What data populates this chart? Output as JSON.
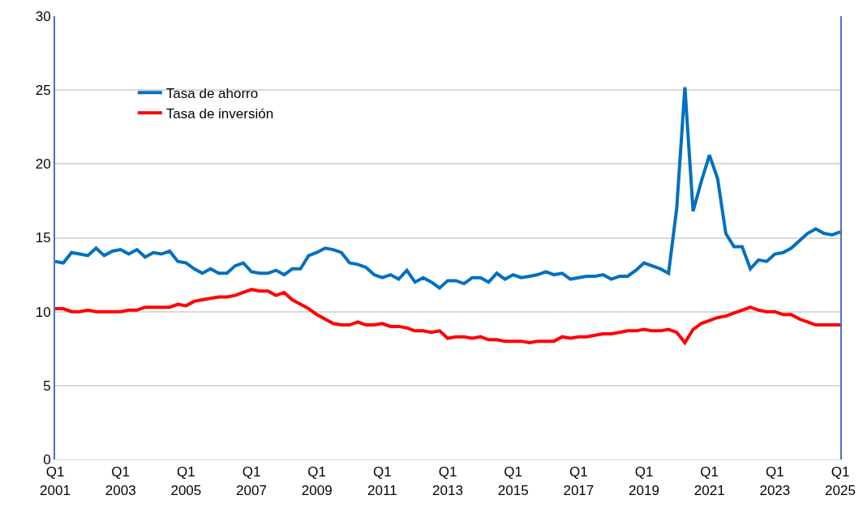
{
  "chart_data": {
    "type": "line",
    "categories": [
      "Q1\n2001",
      null,
      null,
      null,
      null,
      null,
      null,
      null,
      "Q1\n2003",
      null,
      null,
      null,
      null,
      null,
      null,
      null,
      "Q1\n2005",
      null,
      null,
      null,
      null,
      null,
      null,
      null,
      "Q1\n2007",
      null,
      null,
      null,
      null,
      null,
      null,
      null,
      "Q1\n2009",
      null,
      null,
      null,
      null,
      null,
      null,
      null,
      "Q1\n2011",
      null,
      null,
      null,
      null,
      null,
      null,
      null,
      "Q1\n2013",
      null,
      null,
      null,
      null,
      null,
      null,
      null,
      "Q1\n2015",
      null,
      null,
      null,
      null,
      null,
      null,
      null,
      "Q1\n2017",
      null,
      null,
      null,
      null,
      null,
      null,
      null,
      "Q1\n2019",
      null,
      null,
      null,
      null,
      null,
      null,
      null,
      "Q1\n2021",
      null,
      null,
      null,
      null,
      null,
      null,
      null,
      "Q1\n2023",
      null,
      null,
      null,
      null,
      null,
      null,
      null,
      "Q1\n2025"
    ],
    "series": [
      {
        "name": "Tasa de ahorro",
        "color": "#0070c0",
        "values": [
          13.4,
          13.3,
          14.0,
          13.9,
          13.8,
          14.3,
          13.8,
          14.1,
          14.2,
          13.9,
          14.2,
          13.7,
          14.0,
          13.9,
          14.1,
          13.4,
          13.3,
          12.9,
          12.6,
          12.9,
          12.6,
          12.6,
          13.1,
          13.3,
          12.7,
          12.6,
          12.6,
          12.8,
          12.5,
          12.9,
          12.9,
          13.8,
          14.0,
          14.3,
          14.2,
          14.0,
          13.3,
          13.2,
          13.0,
          12.5,
          12.3,
          12.5,
          12.2,
          12.8,
          12.0,
          12.3,
          12.0,
          11.6,
          12.1,
          12.1,
          11.9,
          12.3,
          12.3,
          12.0,
          12.6,
          12.2,
          12.5,
          12.3,
          12.4,
          12.5,
          12.7,
          12.5,
          12.6,
          12.2,
          12.3,
          12.4,
          12.4,
          12.5,
          12.2,
          12.4,
          12.4,
          12.8,
          13.3,
          13.1,
          12.9,
          12.6,
          17.0,
          25.2,
          16.8,
          18.8,
          20.6,
          19.0,
          15.3,
          14.4,
          14.4,
          12.9,
          13.5,
          13.4,
          13.9,
          14.0,
          14.3,
          14.8,
          15.3,
          15.6,
          15.3,
          15.2,
          15.4
        ]
      },
      {
        "name": "Tasa de inversión",
        "color": "#ff0000",
        "values": [
          10.2,
          10.2,
          10.0,
          10.0,
          10.1,
          10.0,
          10.0,
          10.0,
          10.0,
          10.1,
          10.1,
          10.3,
          10.3,
          10.3,
          10.3,
          10.5,
          10.4,
          10.7,
          10.8,
          10.9,
          11.0,
          11.0,
          11.1,
          11.3,
          11.5,
          11.4,
          11.4,
          11.1,
          11.3,
          10.8,
          10.5,
          10.2,
          9.8,
          9.5,
          9.2,
          9.1,
          9.1,
          9.3,
          9.1,
          9.1,
          9.2,
          9.0,
          9.0,
          8.9,
          8.7,
          8.7,
          8.6,
          8.7,
          8.2,
          8.3,
          8.3,
          8.2,
          8.3,
          8.1,
          8.1,
          8.0,
          8.0,
          8.0,
          7.9,
          8.0,
          8.0,
          8.0,
          8.3,
          8.2,
          8.3,
          8.3,
          8.4,
          8.5,
          8.5,
          8.6,
          8.7,
          8.7,
          8.8,
          8.7,
          8.7,
          8.8,
          8.6,
          7.9,
          8.8,
          9.2,
          9.4,
          9.6,
          9.7,
          9.9,
          10.1,
          10.3,
          10.1,
          10.0,
          10.0,
          9.8,
          9.8,
          9.5,
          9.3,
          9.1,
          9.1,
          9.1,
          9.1
        ]
      }
    ],
    "ylim": [
      0,
      30
    ],
    "yticks": [
      0,
      5,
      10,
      15,
      20,
      25,
      30
    ],
    "grid": "y",
    "legend": "top left",
    "marker": "none",
    "line_style": "solid"
  }
}
